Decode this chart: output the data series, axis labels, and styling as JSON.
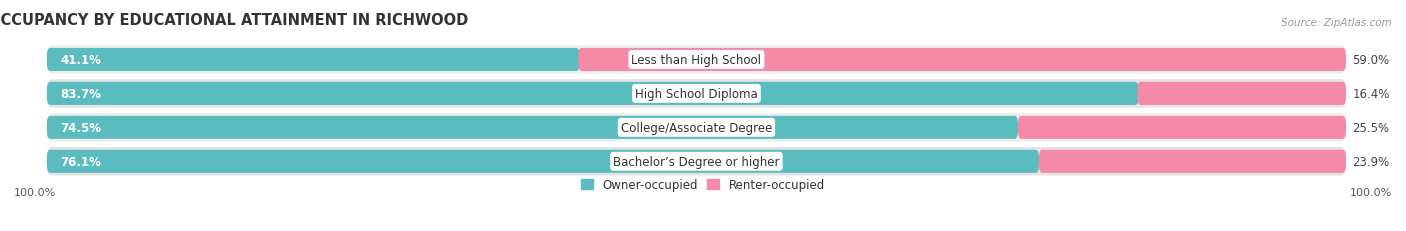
{
  "title": "OCCUPANCY BY EDUCATIONAL ATTAINMENT IN RICHWOOD",
  "source": "Source: ZipAtlas.com",
  "categories": [
    "Less than High School",
    "High School Diploma",
    "College/Associate Degree",
    "Bachelor’s Degree or higher"
  ],
  "owner_pct": [
    41.1,
    83.7,
    74.5,
    76.1
  ],
  "renter_pct": [
    59.0,
    16.4,
    25.5,
    23.9
  ],
  "owner_color": "#5bbcbf",
  "renter_color": "#f589a8",
  "row_bg_colors": [
    "#eeeeee",
    "#e4e4e4",
    "#eeeeee",
    "#e4e4e4"
  ],
  "title_fontsize": 10.5,
  "pct_fontsize": 8.5,
  "cat_fontsize": 8.5,
  "source_fontsize": 7.5,
  "axis_tick_fontsize": 8.0,
  "bar_height": 0.68,
  "figsize": [
    14.06,
    2.32
  ],
  "dpi": 100,
  "axis_label_left": "100.0%",
  "axis_label_right": "100.0%",
  "owner_label": "Owner-occupied",
  "renter_label": "Renter-occupied"
}
